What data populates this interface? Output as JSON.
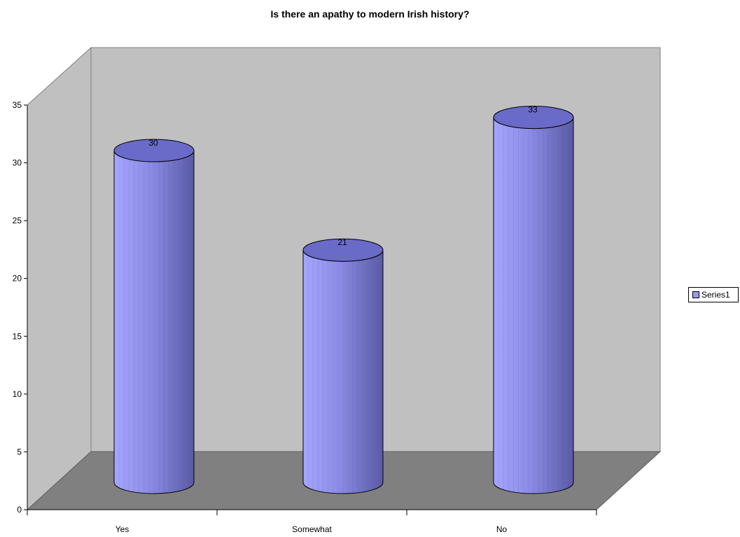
{
  "chart_data": {
    "type": "bar",
    "title": "Is there an apathy to modern Irish history?",
    "categories": [
      "Yes",
      "Somewhat",
      "No"
    ],
    "series": [
      {
        "name": "Series1",
        "values": [
          30,
          21,
          33
        ],
        "color": "#9999ff"
      }
    ],
    "yticks": [
      0,
      5,
      10,
      15,
      20,
      25,
      30,
      35
    ],
    "ylim": [
      0,
      35
    ],
    "legend_position": "right",
    "wall_color": "#c0c0c0",
    "floor_color": "#808080",
    "bar_style": "3d-cylinder"
  }
}
